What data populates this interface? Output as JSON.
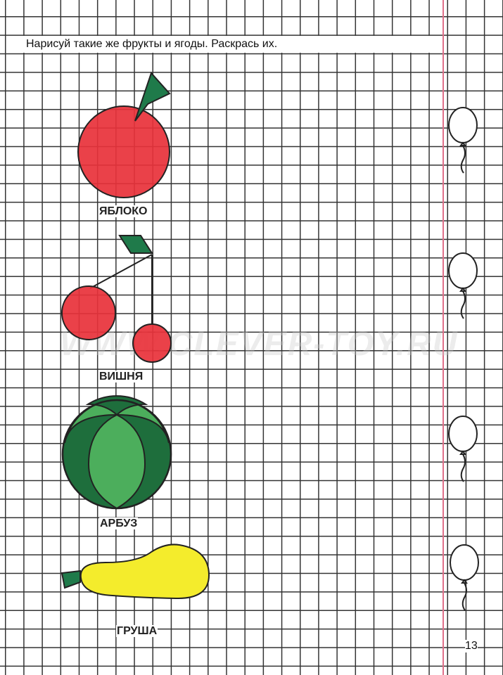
{
  "instruction": "Нарисуй такие же фрукты и ягоды. Раскрась их.",
  "fruits": [
    {
      "label": "ЯБЛОКО",
      "color": "#e8313a"
    },
    {
      "label": "ВИШНЯ",
      "color": "#e8313a"
    },
    {
      "label": "АРБУЗ",
      "color_light": "#4cae5c",
      "color_dark": "#1e6e3c"
    },
    {
      "label": "ГРУША",
      "color": "#f4ec2c"
    }
  ],
  "leaf_color": "#1f7a4a",
  "margin_color": "#e0708a",
  "balloon_icons": 4,
  "page_number": "13",
  "watermark": "WWW.CLEVER-TOY.RU"
}
